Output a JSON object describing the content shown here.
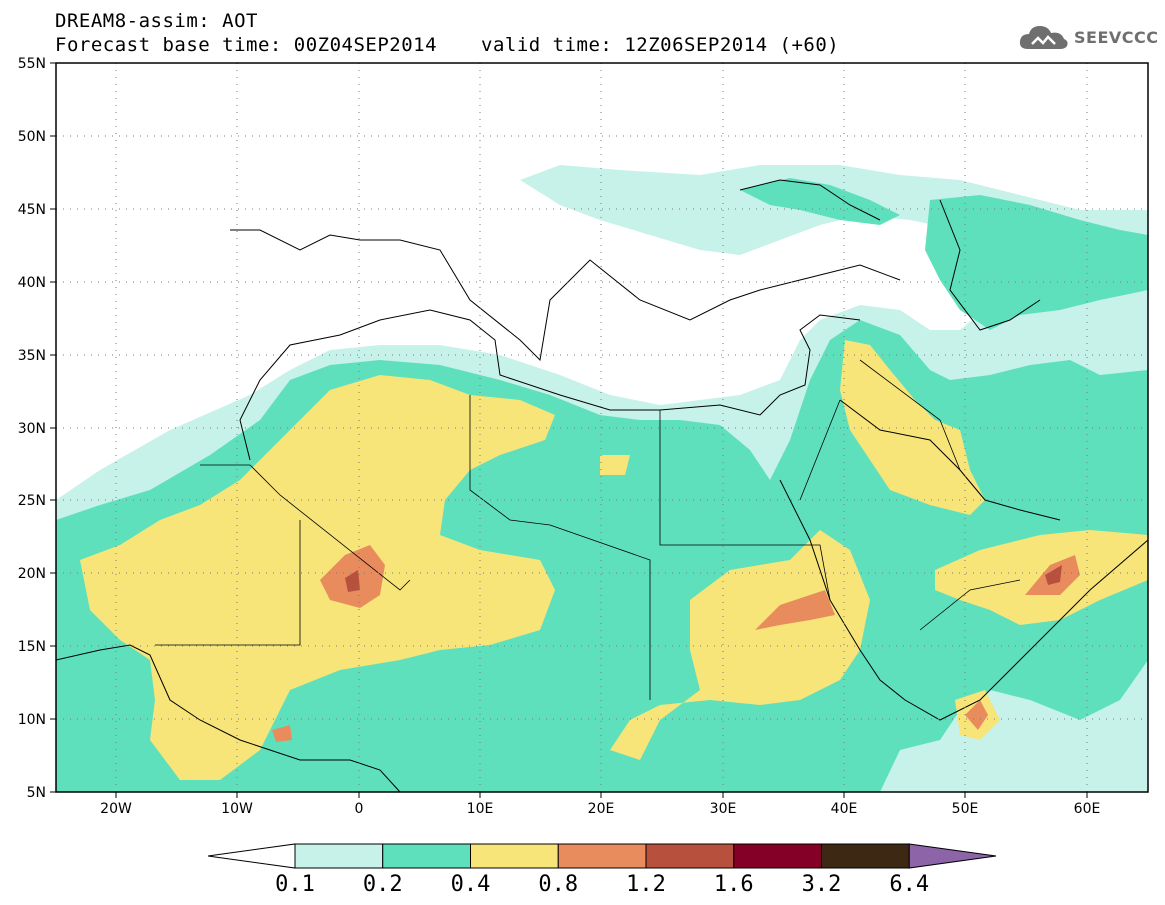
{
  "header": {
    "title_line1": "DREAM8-assim: AOT",
    "forecast_base": "Forecast base time: 00Z04SEP2014",
    "valid_time": "valid time: 12Z06SEP2014 (+60)"
  },
  "logo": {
    "text": "SEEVCCC",
    "icon": "cloud-icon"
  },
  "map": {
    "lat_labels": [
      "55N",
      "50N",
      "45N",
      "40N",
      "35N",
      "30N",
      "25N",
      "20N",
      "15N",
      "10N",
      "5N"
    ],
    "lon_labels": [
      "20W",
      "10W",
      "0",
      "10E",
      "20E",
      "30E",
      "40E",
      "50E",
      "60E"
    ],
    "lat_range": [
      5,
      55
    ],
    "lon_range": [
      -25,
      65
    ],
    "grid": "dotted"
  },
  "colorbar": {
    "labels": [
      "0.1",
      "0.2",
      "0.4",
      "0.8",
      "1.2",
      "1.6",
      "3.2",
      "6.4"
    ],
    "colors": [
      "#ffffff",
      "#c6f2e9",
      "#5fe0bc",
      "#f7e57a",
      "#e88c5e",
      "#b8503e",
      "#850026",
      "#3d2814",
      "#8d64a8"
    ]
  },
  "colors": {
    "c1": "#c6f2e9",
    "c2": "#5fe0bc",
    "c3": "#f7e57a",
    "c4": "#e88c5e",
    "c5": "#b8503e",
    "c6": "#850026"
  }
}
